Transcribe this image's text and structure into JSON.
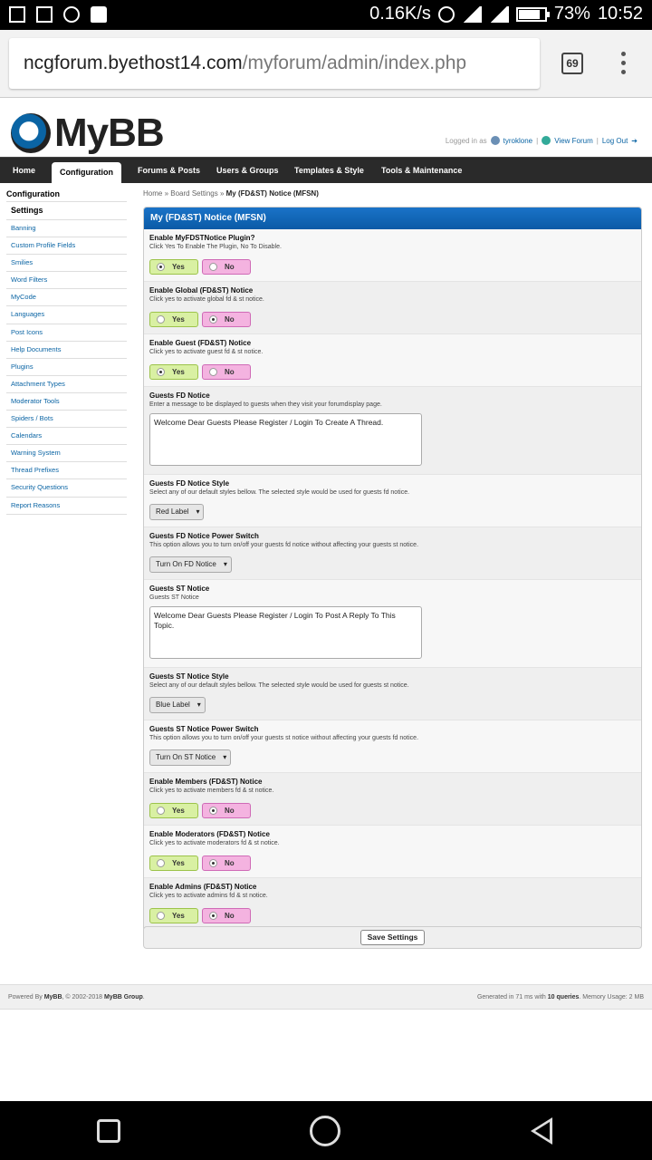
{
  "status": {
    "speed": "0.16K/s",
    "battery": "73%",
    "time": "10:52"
  },
  "browser": {
    "url_host": "ncgforum.byethost14.com",
    "url_path": "/myforum/admin/index.php",
    "tab_count": "69"
  },
  "header": {
    "logo": "MyBB",
    "logged_in_as": "Logged in as",
    "username": "tyroklone",
    "view_forum": "View Forum",
    "log_out": "Log Out"
  },
  "nav": [
    "Home",
    "Configuration",
    "Forums & Posts",
    "Users & Groups",
    "Templates & Style",
    "Tools & Maintenance"
  ],
  "sidebar": {
    "section": "Configuration",
    "heading": "Settings",
    "items": [
      "Banning",
      "Custom Profile Fields",
      "Smilies",
      "Word Filters",
      "MyCode",
      "Languages",
      "Post Icons",
      "Help Documents",
      "Plugins",
      "Attachment Types",
      "Moderator Tools",
      "Spiders / Bots",
      "Calendars",
      "Warning System",
      "Thread Prefixes",
      "Security Questions",
      "Report Reasons"
    ]
  },
  "breadcrumb": {
    "a": "Home",
    "b": "Board Settings",
    "c": "My (FD&ST) Notice (MFSN)"
  },
  "panel_title": "My (FD&ST) Notice (MFSN)",
  "yes_label": "Yes",
  "no_label": "No",
  "settings": [
    {
      "title": "Enable MyFDSTNotice Plugin?",
      "desc": "Click Yes To Enable The Plugin, No To Disable.",
      "type": "yesno",
      "value": "yes"
    },
    {
      "title": "Enable Global (FD&ST) Notice",
      "desc": "Click yes to activate global fd & st notice.",
      "type": "yesno",
      "value": "no"
    },
    {
      "title": "Enable Guest (FD&ST) Notice",
      "desc": "Click yes to activate guest fd & st notice.",
      "type": "yesno",
      "value": "yes"
    },
    {
      "title": "Guests FD Notice",
      "desc": "Enter a message to be displayed to guests when they visit your forumdisplay page.",
      "type": "textarea",
      "value": "Welcome Dear Guests Please Register / Login To Create A Thread."
    },
    {
      "title": "Guests FD Notice Style",
      "desc": "Select any of our default styles bellow. The selected style would be used for guests fd notice.",
      "type": "select",
      "value": "Red Label"
    },
    {
      "title": "Guests FD Notice Power Switch",
      "desc": "This option allows you to turn on/off your guests fd notice without affecting your guests st notice.",
      "type": "select",
      "value": "Turn On FD Notice"
    },
    {
      "title": "Guests ST Notice",
      "desc": "Guests ST Notice",
      "type": "textarea",
      "value": "Welcome Dear Guests Please Register / Login To Post A Reply To This Topic."
    },
    {
      "title": "Guests ST Notice Style",
      "desc": "Select any of our default styles bellow. The selected style would be used for guests st notice.",
      "type": "select",
      "value": "Blue Label"
    },
    {
      "title": "Guests ST Notice Power Switch",
      "desc": "This option allows you to turn on/off your guests st notice without affecting your guests fd notice.",
      "type": "select",
      "value": "Turn On ST Notice"
    },
    {
      "title": "Enable Members (FD&ST) Notice",
      "desc": "Click yes to activate members fd & st notice.",
      "type": "yesno",
      "value": "no"
    },
    {
      "title": "Enable Moderators (FD&ST) Notice",
      "desc": "Click yes to activate moderators fd & st notice.",
      "type": "yesno",
      "value": "no"
    },
    {
      "title": "Enable Admins (FD&ST) Notice",
      "desc": "Click yes to activate admins fd & st notice.",
      "type": "yesno",
      "value": "no"
    }
  ],
  "save_label": "Save Settings",
  "footer": {
    "powered_prefix": "Powered By",
    "powered_name": "MyBB",
    "copyright": ", © 2002-2018",
    "group": "MyBB Group",
    "generated_prefix": "Generated in 71 ms with",
    "queries": "10 queries",
    "memory": ". Memory Usage: 2 MB"
  }
}
